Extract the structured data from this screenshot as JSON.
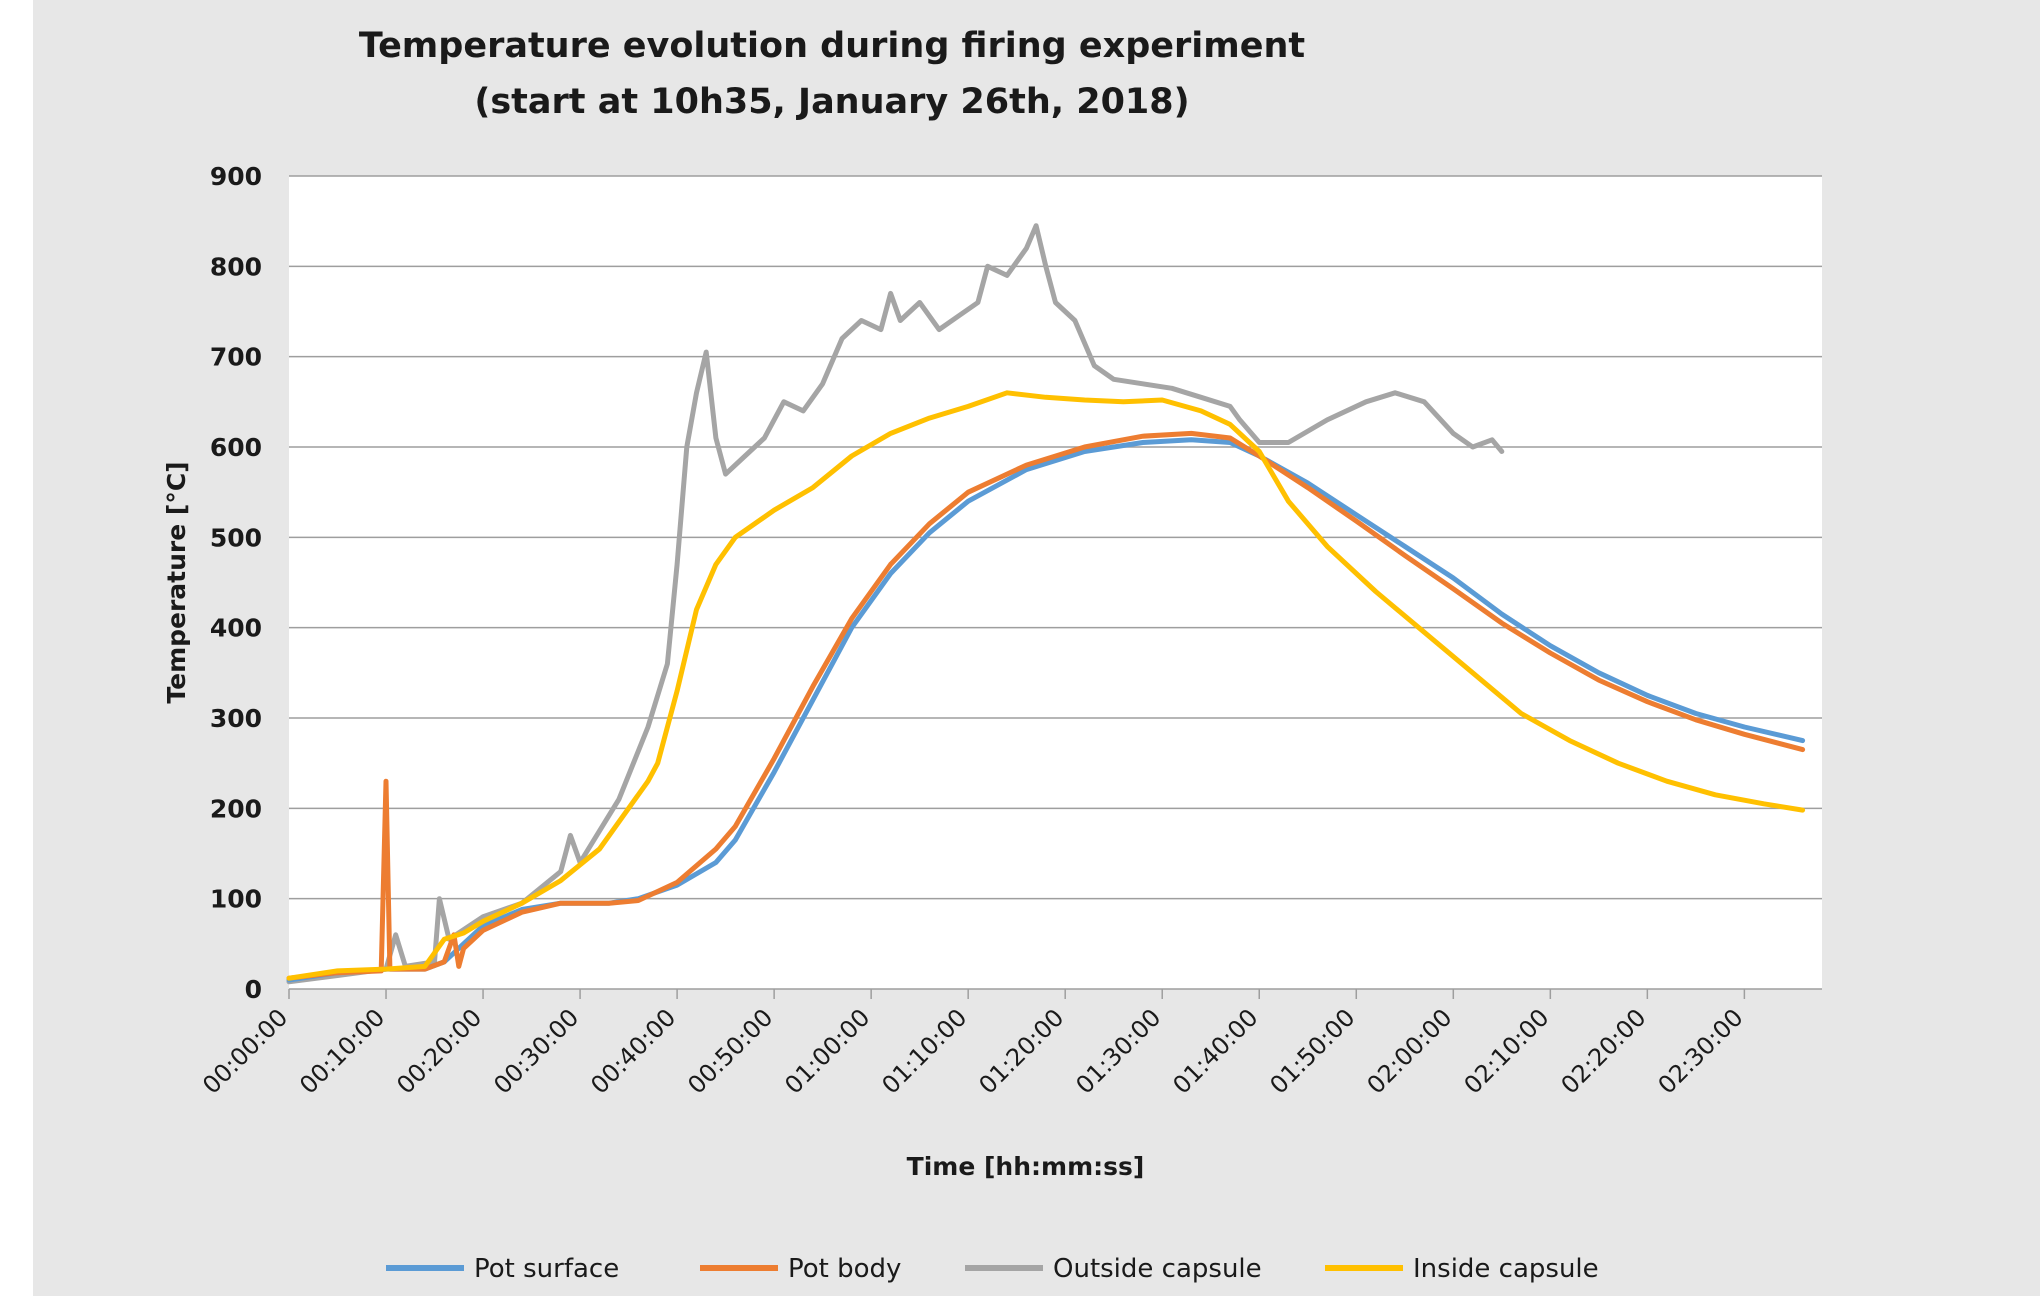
{
  "chart_data": {
    "type": "line",
    "title": "Temperature evolution during firing experiment",
    "subtitle": "(start at 10h35, January 26th, 2018)",
    "xlabel": "Time [hh:mm:ss]",
    "ylabel": "Temperature [°C]",
    "xlim": [
      0,
      158
    ],
    "ylim": [
      0,
      900
    ],
    "x_unit": "minutes",
    "yticks": [
      0,
      100,
      200,
      300,
      400,
      500,
      600,
      700,
      800,
      900
    ],
    "xticks": [
      0,
      10,
      20,
      30,
      40,
      50,
      60,
      70,
      80,
      90,
      100,
      110,
      120,
      130,
      140,
      150
    ],
    "xtick_labels": [
      "00:00:00",
      "00:10:00",
      "00:20:00",
      "00:30:00",
      "00:40:00",
      "00:50:00",
      "01:00:00",
      "01:10:00",
      "01:20:00",
      "01:30:00",
      "01:40:00",
      "01:50:00",
      "02:00:00",
      "02:10:00",
      "02:20:00",
      "02:30:00"
    ],
    "grid": true,
    "legend_position": "bottom",
    "series": [
      {
        "name": "Pot surface",
        "color": "#5b9bd5",
        "points": [
          [
            0,
            10
          ],
          [
            5,
            18
          ],
          [
            10,
            22
          ],
          [
            14,
            22
          ],
          [
            16,
            30
          ],
          [
            18,
            50
          ],
          [
            20,
            70
          ],
          [
            24,
            88
          ],
          [
            28,
            95
          ],
          [
            33,
            95
          ],
          [
            36,
            100
          ],
          [
            40,
            115
          ],
          [
            44,
            140
          ],
          [
            46,
            165
          ],
          [
            50,
            240
          ],
          [
            54,
            320
          ],
          [
            58,
            400
          ],
          [
            62,
            460
          ],
          [
            66,
            505
          ],
          [
            70,
            540
          ],
          [
            76,
            575
          ],
          [
            82,
            595
          ],
          [
            88,
            605
          ],
          [
            93,
            608
          ],
          [
            97,
            605
          ],
          [
            100,
            590
          ],
          [
            105,
            560
          ],
          [
            110,
            525
          ],
          [
            115,
            490
          ],
          [
            120,
            455
          ],
          [
            125,
            415
          ],
          [
            130,
            380
          ],
          [
            135,
            350
          ],
          [
            140,
            325
          ],
          [
            145,
            305
          ],
          [
            150,
            290
          ],
          [
            156,
            275
          ]
        ]
      },
      {
        "name": "Pot body",
        "color": "#ed7d31",
        "points": [
          [
            0,
            12
          ],
          [
            5,
            18
          ],
          [
            9.5,
            20
          ],
          [
            10,
            230
          ],
          [
            10.4,
            22
          ],
          [
            14,
            22
          ],
          [
            16,
            30
          ],
          [
            17,
            60
          ],
          [
            17.5,
            25
          ],
          [
            18,
            45
          ],
          [
            20,
            65
          ],
          [
            24,
            85
          ],
          [
            28,
            95
          ],
          [
            33,
            95
          ],
          [
            36,
            98
          ],
          [
            40,
            118
          ],
          [
            44,
            155
          ],
          [
            46,
            180
          ],
          [
            50,
            255
          ],
          [
            54,
            335
          ],
          [
            58,
            410
          ],
          [
            62,
            470
          ],
          [
            66,
            515
          ],
          [
            70,
            550
          ],
          [
            76,
            580
          ],
          [
            82,
            600
          ],
          [
            88,
            612
          ],
          [
            93,
            615
          ],
          [
            97,
            610
          ],
          [
            100,
            590
          ],
          [
            105,
            555
          ],
          [
            110,
            518
          ],
          [
            115,
            480
          ],
          [
            120,
            443
          ],
          [
            125,
            405
          ],
          [
            130,
            372
          ],
          [
            135,
            342
          ],
          [
            140,
            318
          ],
          [
            145,
            298
          ],
          [
            150,
            282
          ],
          [
            156,
            265
          ]
        ]
      },
      {
        "name": "Outside capsule",
        "color": "#a5a5a5",
        "points": [
          [
            0,
            8
          ],
          [
            5,
            15
          ],
          [
            10,
            22
          ],
          [
            11,
            60
          ],
          [
            12,
            25
          ],
          [
            15,
            30
          ],
          [
            15.5,
            100
          ],
          [
            16.5,
            55
          ],
          [
            20,
            80
          ],
          [
            24,
            95
          ],
          [
            28,
            130
          ],
          [
            29,
            170
          ],
          [
            30,
            140
          ],
          [
            34,
            210
          ],
          [
            37,
            290
          ],
          [
            39,
            360
          ],
          [
            40,
            470
          ],
          [
            41,
            600
          ],
          [
            42,
            660
          ],
          [
            43,
            705
          ],
          [
            44,
            610
          ],
          [
            45,
            570
          ],
          [
            47,
            590
          ],
          [
            49,
            610
          ],
          [
            51,
            650
          ],
          [
            53,
            640
          ],
          [
            55,
            670
          ],
          [
            57,
            720
          ],
          [
            59,
            740
          ],
          [
            61,
            730
          ],
          [
            62,
            770
          ],
          [
            63,
            740
          ],
          [
            65,
            760
          ],
          [
            67,
            730
          ],
          [
            69,
            745
          ],
          [
            71,
            760
          ],
          [
            72,
            800
          ],
          [
            74,
            790
          ],
          [
            76,
            820
          ],
          [
            77,
            845
          ],
          [
            78,
            800
          ],
          [
            79,
            760
          ],
          [
            81,
            740
          ],
          [
            83,
            690
          ],
          [
            85,
            675
          ],
          [
            88,
            670
          ],
          [
            91,
            665
          ],
          [
            94,
            655
          ],
          [
            97,
            645
          ],
          [
            98,
            630
          ],
          [
            100,
            605
          ],
          [
            103,
            605
          ],
          [
            107,
            630
          ],
          [
            111,
            650
          ],
          [
            114,
            660
          ],
          [
            117,
            650
          ],
          [
            120,
            615
          ],
          [
            122,
            600
          ],
          [
            124,
            608
          ],
          [
            125,
            595
          ]
        ]
      },
      {
        "name": "Inside capsule",
        "color": "#ffc000",
        "points": [
          [
            0,
            12
          ],
          [
            5,
            20
          ],
          [
            10,
            22
          ],
          [
            14,
            25
          ],
          [
            15,
            40
          ],
          [
            16,
            55
          ],
          [
            18,
            62
          ],
          [
            20,
            75
          ],
          [
            24,
            95
          ],
          [
            28,
            120
          ],
          [
            32,
            155
          ],
          [
            35,
            200
          ],
          [
            37,
            230
          ],
          [
            38,
            250
          ],
          [
            40,
            330
          ],
          [
            42,
            420
          ],
          [
            44,
            470
          ],
          [
            46,
            500
          ],
          [
            50,
            530
          ],
          [
            54,
            555
          ],
          [
            58,
            590
          ],
          [
            62,
            615
          ],
          [
            66,
            632
          ],
          [
            70,
            645
          ],
          [
            74,
            660
          ],
          [
            78,
            655
          ],
          [
            82,
            652
          ],
          [
            86,
            650
          ],
          [
            90,
            652
          ],
          [
            94,
            640
          ],
          [
            97,
            625
          ],
          [
            100,
            595
          ],
          [
            103,
            540
          ],
          [
            107,
            490
          ],
          [
            112,
            440
          ],
          [
            117,
            395
          ],
          [
            122,
            350
          ],
          [
            127,
            305
          ],
          [
            132,
            275
          ],
          [
            137,
            250
          ],
          [
            142,
            230
          ],
          [
            147,
            215
          ],
          [
            152,
            205
          ],
          [
            156,
            198
          ]
        ]
      }
    ]
  },
  "legend": {
    "items": [
      {
        "label": "Pot surface",
        "color": "#5b9bd5"
      },
      {
        "label": "Pot body",
        "color": "#ed7d31"
      },
      {
        "label": "Outside capsule",
        "color": "#a5a5a5"
      },
      {
        "label": "Inside capsule",
        "color": "#ffc000"
      }
    ]
  }
}
